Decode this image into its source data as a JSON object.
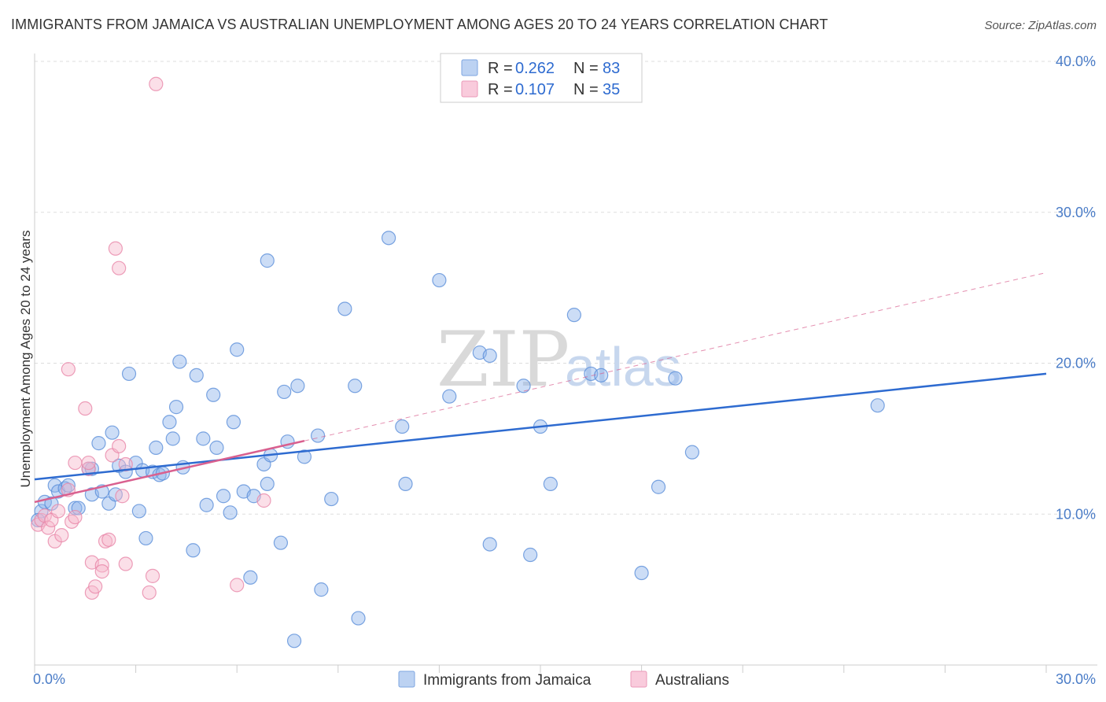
{
  "chart_data": {
    "type": "scatter",
    "title": "IMMIGRANTS FROM JAMAICA VS AUSTRALIAN UNEMPLOYMENT AMONG AGES 20 TO 24 YEARS CORRELATION CHART",
    "source": "Source: ZipAtlas.com",
    "watermark": {
      "zip": "ZIP",
      "atlas": "atlas"
    },
    "xlabel": "",
    "ylabel": "Unemployment Among Ages 20 to 24 years",
    "xlim": [
      0,
      30
    ],
    "ylim": [
      0,
      40
    ],
    "x_tick_labels": {
      "left": "0.0%",
      "right": "30.0%"
    },
    "y_ticks": [
      {
        "value": 10,
        "label": "10.0%"
      },
      {
        "value": 20,
        "label": "20.0%"
      },
      {
        "value": 30,
        "label": "30.0%"
      },
      {
        "value": 40,
        "label": "40.0%"
      }
    ],
    "grid": true,
    "legend": {
      "position": "top-center",
      "entries": [
        {
          "series": "Immigrants from Jamaica",
          "r_label": "R =",
          "r": "0.262",
          "n_label": "N =",
          "n": "83"
        },
        {
          "series": "Australians",
          "r_label": "R =",
          "r": "0.107",
          "n_label": "N =",
          "n": "35"
        }
      ]
    },
    "series": [
      {
        "name": "Immigrants from Jamaica",
        "color": "#8fb4ea",
        "stroke": "#5b8fd9",
        "line_color": "#2e6bd0",
        "trend": {
          "x0": 0,
          "y0": 12.3,
          "x1": 30,
          "y1": 19.3,
          "dashed_from": null
        },
        "points": [
          [
            0.2,
            10.2
          ],
          [
            0.3,
            10.8
          ],
          [
            0.5,
            10.7
          ],
          [
            0.6,
            11.9
          ],
          [
            0.7,
            11.5
          ],
          [
            0.9,
            11.7
          ],
          [
            1.0,
            11.9
          ],
          [
            1.2,
            10.4
          ],
          [
            1.3,
            10.4
          ],
          [
            1.6,
            13.0
          ],
          [
            1.7,
            13.0
          ],
          [
            1.7,
            11.3
          ],
          [
            1.9,
            14.7
          ],
          [
            2.0,
            11.5
          ],
          [
            2.2,
            10.7
          ],
          [
            2.3,
            15.4
          ],
          [
            2.4,
            11.3
          ],
          [
            2.5,
            13.2
          ],
          [
            2.7,
            12.8
          ],
          [
            2.8,
            19.3
          ],
          [
            3.0,
            13.4
          ],
          [
            3.1,
            10.2
          ],
          [
            3.2,
            12.9
          ],
          [
            3.3,
            8.4
          ],
          [
            3.5,
            12.8
          ],
          [
            3.6,
            14.4
          ],
          [
            3.7,
            12.6
          ],
          [
            3.8,
            12.7
          ],
          [
            4.0,
            16.1
          ],
          [
            4.1,
            15.0
          ],
          [
            4.2,
            17.1
          ],
          [
            4.3,
            20.1
          ],
          [
            4.4,
            13.1
          ],
          [
            4.7,
            7.6
          ],
          [
            4.8,
            19.2
          ],
          [
            5.0,
            15.0
          ],
          [
            5.1,
            10.6
          ],
          [
            5.3,
            17.9
          ],
          [
            5.4,
            14.4
          ],
          [
            5.6,
            11.2
          ],
          [
            5.8,
            10.1
          ],
          [
            5.9,
            16.1
          ],
          [
            6.0,
            20.9
          ],
          [
            6.2,
            11.5
          ],
          [
            6.4,
            5.8
          ],
          [
            6.5,
            11.2
          ],
          [
            6.8,
            13.3
          ],
          [
            6.9,
            12.0
          ],
          [
            6.9,
            26.8
          ],
          [
            7.0,
            13.9
          ],
          [
            7.3,
            8.1
          ],
          [
            7.4,
            18.1
          ],
          [
            7.5,
            14.8
          ],
          [
            7.7,
            1.6
          ],
          [
            7.8,
            18.5
          ],
          [
            8.0,
            13.8
          ],
          [
            8.4,
            15.2
          ],
          [
            8.5,
            5.0
          ],
          [
            8.8,
            11.0
          ],
          [
            9.2,
            23.6
          ],
          [
            9.5,
            18.5
          ],
          [
            9.6,
            3.1
          ],
          [
            10.5,
            28.3
          ],
          [
            10.9,
            15.8
          ],
          [
            11.0,
            12.0
          ],
          [
            12.0,
            25.5
          ],
          [
            12.3,
            17.8
          ],
          [
            13.2,
            20.7
          ],
          [
            13.5,
            20.5
          ],
          [
            13.5,
            8.0
          ],
          [
            14.5,
            18.5
          ],
          [
            14.7,
            7.3
          ],
          [
            15.0,
            15.8
          ],
          [
            15.3,
            12.0
          ],
          [
            16.0,
            23.2
          ],
          [
            16.5,
            19.3
          ],
          [
            16.8,
            19.2
          ],
          [
            18.0,
            6.1
          ],
          [
            18.5,
            11.8
          ],
          [
            19.0,
            19.0
          ],
          [
            19.5,
            14.1
          ],
          [
            25.0,
            17.2
          ],
          [
            0.1,
            9.6
          ]
        ]
      },
      {
        "name": "Australians",
        "color": "#f6b8cd",
        "stroke": "#e887a9",
        "line_color": "#d9608f",
        "trend": {
          "x0": 0,
          "y0": 10.8,
          "x1": 30,
          "y1": 26.0,
          "solid_until_x": 8.0
        },
        "points": [
          [
            0.1,
            9.3
          ],
          [
            0.2,
            9.6
          ],
          [
            0.3,
            9.9
          ],
          [
            0.4,
            9.1
          ],
          [
            0.5,
            9.6
          ],
          [
            0.6,
            8.2
          ],
          [
            0.7,
            10.2
          ],
          [
            0.8,
            8.6
          ],
          [
            1.0,
            11.6
          ],
          [
            1.1,
            9.5
          ],
          [
            1.2,
            9.8
          ],
          [
            1.0,
            19.6
          ],
          [
            1.2,
            13.4
          ],
          [
            1.5,
            17.0
          ],
          [
            1.6,
            13.0
          ],
          [
            1.6,
            13.4
          ],
          [
            1.7,
            6.8
          ],
          [
            1.7,
            4.8
          ],
          [
            1.8,
            5.2
          ],
          [
            2.0,
            6.6
          ],
          [
            2.0,
            6.2
          ],
          [
            2.1,
            8.2
          ],
          [
            2.2,
            8.3
          ],
          [
            2.3,
            13.9
          ],
          [
            2.4,
            27.6
          ],
          [
            2.5,
            14.5
          ],
          [
            2.5,
            26.3
          ],
          [
            2.6,
            11.2
          ],
          [
            2.7,
            13.3
          ],
          [
            2.7,
            6.7
          ],
          [
            3.4,
            4.8
          ],
          [
            3.5,
            5.9
          ],
          [
            3.6,
            38.5
          ],
          [
            6.0,
            5.3
          ],
          [
            6.8,
            10.9
          ]
        ]
      }
    ]
  }
}
